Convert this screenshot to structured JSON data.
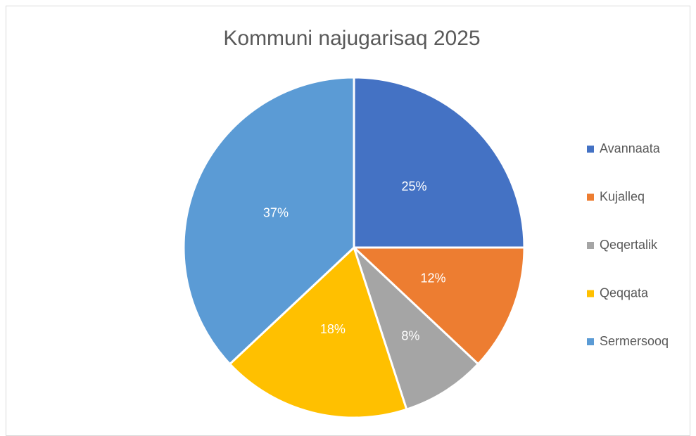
{
  "chart_data": {
    "type": "pie",
    "title": "Kommuni najugarisaq 2025",
    "categories": [
      "Avannaata",
      "Kujalleq",
      "Qeqertalik",
      "Qeqqata",
      "Sermersooq"
    ],
    "values": [
      25,
      12,
      8,
      18,
      37
    ],
    "value_labels": [
      "25%",
      "12%",
      "8%",
      "18%",
      "37%"
    ],
    "colors": [
      "#4472c4",
      "#ed7d31",
      "#a5a5a5",
      "#ffc000",
      "#5b9bd5"
    ],
    "legend": "right"
  }
}
